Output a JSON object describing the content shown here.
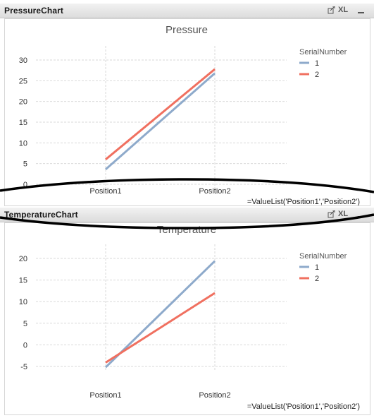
{
  "charts": [
    {
      "window_title": "PressureChart",
      "title": "Pressure",
      "x_expression": "=ValueList('Position1','Position2')",
      "legend_title": "SerialNumber",
      "toolbar": {
        "export_icon": "export-icon",
        "xl_label": "XL",
        "minimize_icon": "minimize-icon"
      }
    },
    {
      "window_title": "TemperatureChart",
      "title": "Temperature",
      "x_expression": "=ValueList('Position1','Position2')",
      "legend_title": "SerialNumber",
      "toolbar": {
        "export_icon": "export-icon",
        "xl_label": "XL",
        "minimize_icon": "minimize-icon"
      }
    }
  ],
  "chart_data": [
    {
      "type": "line",
      "title": "Pressure",
      "xlabel": "",
      "ylabel": "",
      "categories": [
        "Position1",
        "Position2"
      ],
      "ylim": [
        0,
        30
      ],
      "yticks": [
        0,
        5,
        10,
        15,
        20,
        25,
        30
      ],
      "grid": true,
      "legend_position": "top-right",
      "series": [
        {
          "name": "1",
          "color": "#8eaacb",
          "values": [
            3.6,
            26.8
          ]
        },
        {
          "name": "2",
          "color": "#f07060",
          "values": [
            6.0,
            27.8
          ]
        }
      ]
    },
    {
      "type": "line",
      "title": "Temperature",
      "xlabel": "",
      "ylabel": "",
      "categories": [
        "Position1",
        "Position2"
      ],
      "ylim": [
        -5,
        20
      ],
      "yticks": [
        -5,
        0,
        5,
        10,
        15,
        20
      ],
      "grid": true,
      "legend_position": "top-right",
      "series": [
        {
          "name": "1",
          "color": "#8eaacb",
          "values": [
            -5.2,
            19.4
          ]
        },
        {
          "name": "2",
          "color": "#f07060",
          "values": [
            -4.1,
            12.0
          ]
        }
      ]
    }
  ]
}
